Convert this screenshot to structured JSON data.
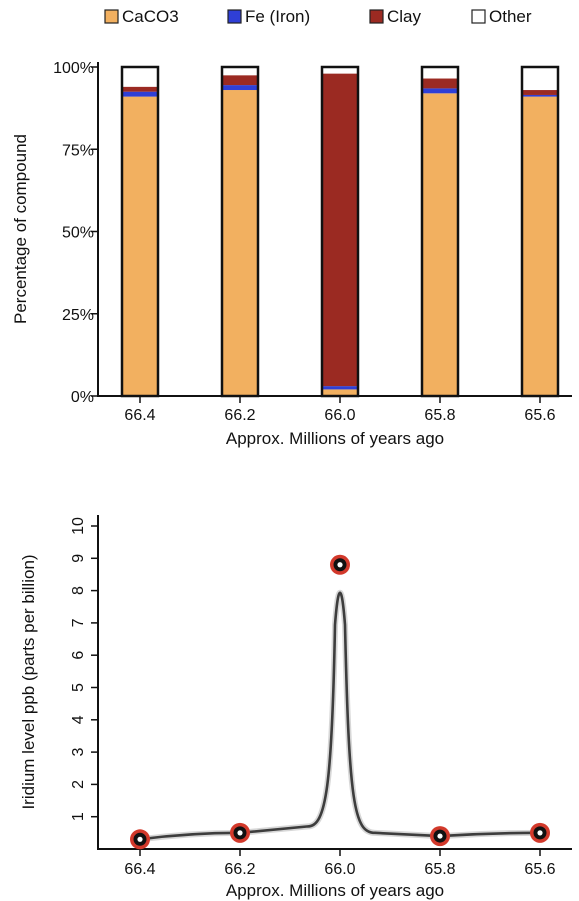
{
  "chart_data": [
    {
      "type": "bar",
      "stacked": true,
      "categories": [
        "66.4",
        "66.2",
        "66.0",
        "65.8",
        "65.6"
      ],
      "xlabel": "Approx. Millions of years ago",
      "ylabel": "Percentage of compound",
      "ylim": [
        0,
        100
      ],
      "yticks": [
        "0%",
        "25%",
        "50%",
        "75%",
        "100%"
      ],
      "grid": false,
      "legend_position": "top",
      "series": [
        {
          "name": "CaCO3",
          "color": "#f2b060",
          "values": [
            91,
            93,
            2,
            92,
            91
          ]
        },
        {
          "name": "Fe (Iron)",
          "color": "#2f3fd6",
          "values": [
            1.5,
            1.5,
            1,
            1.5,
            0.5
          ]
        },
        {
          "name": "Clay",
          "color": "#9b2a22",
          "values": [
            1.5,
            3,
            95,
            3,
            1.5
          ]
        },
        {
          "name": "Other",
          "color": "#ffffff",
          "values": [
            6,
            2.5,
            2,
            3.5,
            7
          ]
        }
      ]
    },
    {
      "type": "line",
      "categories": [
        "66.4",
        "66.2",
        "66.0",
        "65.8",
        "65.6"
      ],
      "xlabel": "Approx. Millions of years ago",
      "ylabel": "Iridium level ppb (parts per billion)",
      "ylim": [
        0,
        10
      ],
      "yticks": [
        "1",
        "2",
        "3",
        "4",
        "5",
        "6",
        "7",
        "8",
        "9",
        "10"
      ],
      "grid": false,
      "series": [
        {
          "name": "",
          "color": "#444444",
          "marker_color": "#d2392b",
          "values": [
            0.3,
            0.5,
            8.8,
            0.4,
            0.5
          ]
        }
      ]
    }
  ]
}
